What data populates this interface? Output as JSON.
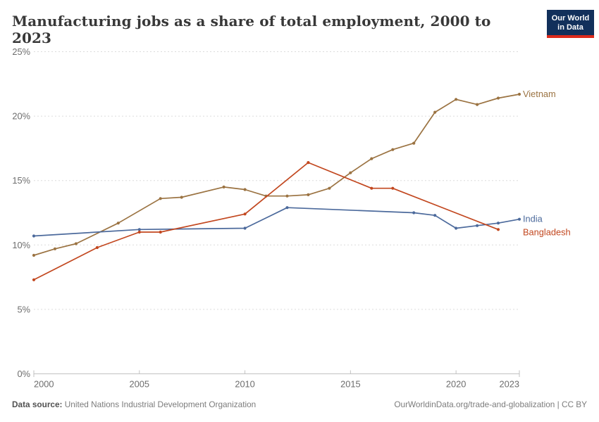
{
  "header": {
    "title": "Manufacturing jobs as a share of total employment, 2000 to 2023",
    "logo_line1": "Our World",
    "logo_line2": "in Data"
  },
  "footer": {
    "source_label": "Data source:",
    "source_text": "United Nations Industrial Development Organization",
    "link_text": "OurWorldinData.org/trade-and-globalization | CC BY"
  },
  "brand": {
    "logo_background": "#12305B",
    "logo_underline": "#DC2A1B"
  },
  "chart_data": {
    "type": "line",
    "title": "Manufacturing jobs as a share of total employment, 2000 to 2023",
    "xlabel": "",
    "ylabel": "",
    "unit": "%",
    "xlim": [
      2000,
      2023
    ],
    "ylim": [
      0,
      25
    ],
    "yticks": [
      0,
      5,
      10,
      15,
      20,
      25
    ],
    "xticks": [
      2000,
      2005,
      2010,
      2015,
      2020,
      2023
    ],
    "grid": "horizontal-dashed",
    "grid_color": "#dcdcdc",
    "axis_color": "#c2c2c2",
    "tick_label_color": "#6d6d6d",
    "legend_position": "labels-at-line-ends-right",
    "series": [
      {
        "name": "Vietnam",
        "color": "#9B7342",
        "label_dy": 0,
        "points": [
          [
            2000,
            9.2
          ],
          [
            2001,
            9.7
          ],
          [
            2002,
            10.1
          ],
          [
            2004,
            11.7
          ],
          [
            2006,
            13.6
          ],
          [
            2007,
            13.7
          ],
          [
            2009,
            14.5
          ],
          [
            2010,
            14.3
          ],
          [
            2011,
            13.8
          ],
          [
            2012,
            13.8
          ],
          [
            2013,
            13.9
          ],
          [
            2014,
            14.4
          ],
          [
            2015,
            15.6
          ],
          [
            2016,
            16.7
          ],
          [
            2017,
            17.4
          ],
          [
            2018,
            17.9
          ],
          [
            2019,
            20.3
          ],
          [
            2020,
            21.3
          ],
          [
            2021,
            20.9
          ],
          [
            2022,
            21.4
          ],
          [
            2023,
            21.7
          ]
        ]
      },
      {
        "name": "India",
        "color": "#4C6A9C",
        "label_dy": 0,
        "points": [
          [
            2000,
            10.7
          ],
          [
            2005,
            11.2
          ],
          [
            2010,
            11.3
          ],
          [
            2012,
            12.9
          ],
          [
            2018,
            12.5
          ],
          [
            2019,
            12.3
          ],
          [
            2020,
            11.3
          ],
          [
            2021,
            11.5
          ],
          [
            2022,
            11.7
          ],
          [
            2023,
            12.0
          ]
        ]
      },
      {
        "name": "Bangladesh",
        "color": "#C2471F",
        "label_dy": 4,
        "points": [
          [
            2000,
            7.3
          ],
          [
            2003,
            9.8
          ],
          [
            2005,
            11.0
          ],
          [
            2006,
            11.0
          ],
          [
            2010,
            12.4
          ],
          [
            2013,
            16.4
          ],
          [
            2016,
            14.4
          ],
          [
            2017,
            14.4
          ],
          [
            2022,
            11.2
          ]
        ]
      }
    ]
  }
}
